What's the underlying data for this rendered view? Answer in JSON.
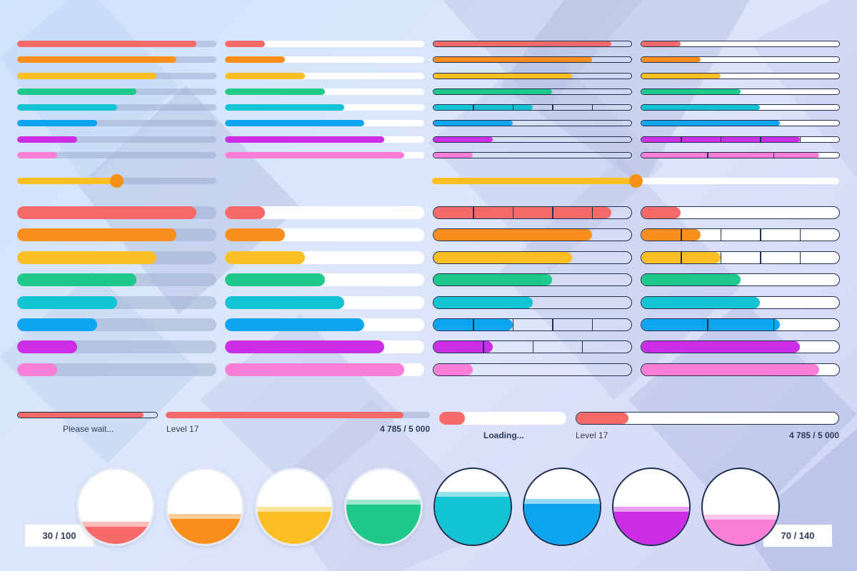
{
  "palette": {
    "red": "#f86a6a",
    "orange": "#fb8f1e",
    "yellow": "#fbbf24",
    "green": "#1ec98a",
    "teal": "#12c3d3",
    "blue": "#0ea5f0",
    "purple": "#cc2ee8",
    "pink": "#fb7fd6",
    "outline": "#1f2f52",
    "track": "#9eaed0",
    "handle": "#f59117"
  },
  "bar_sets": [
    {
      "id": "thin",
      "columns": [
        {
          "style": "flat",
          "bars": [
            {
              "color": "red",
              "progress": 0.9
            },
            {
              "color": "orange",
              "progress": 0.8
            },
            {
              "color": "yellow",
              "progress": 0.7
            },
            {
              "color": "green",
              "progress": 0.6
            },
            {
              "color": "teal",
              "progress": 0.5
            },
            {
              "color": "blue",
              "progress": 0.4
            },
            {
              "color": "purple",
              "progress": 0.3
            },
            {
              "color": "pink",
              "progress": 0.2
            }
          ]
        },
        {
          "style": "white",
          "bars": [
            {
              "color": "red",
              "progress": 0.2
            },
            {
              "color": "orange",
              "progress": 0.3
            },
            {
              "color": "yellow",
              "progress": 0.4
            },
            {
              "color": "green",
              "progress": 0.5
            },
            {
              "color": "teal",
              "progress": 0.6
            },
            {
              "color": "blue",
              "progress": 0.7
            },
            {
              "color": "purple",
              "progress": 0.8
            },
            {
              "color": "pink",
              "progress": 0.9
            }
          ]
        },
        {
          "style": "outline",
          "bars": [
            {
              "color": "red",
              "progress": 0.9,
              "segments": 0
            },
            {
              "color": "orange",
              "progress": 0.8,
              "segments": 0
            },
            {
              "color": "yellow",
              "progress": 0.7,
              "segments": 0
            },
            {
              "color": "green",
              "progress": 0.6,
              "segments": 0
            },
            {
              "color": "teal",
              "progress": 0.5,
              "segments": 5
            },
            {
              "color": "blue",
              "progress": 0.4,
              "segments": 0
            },
            {
              "color": "purple",
              "progress": 0.3,
              "segments": 0
            },
            {
              "color": "pink",
              "progress": 0.2,
              "segments": 0
            }
          ]
        },
        {
          "style": "outline-white",
          "bars": [
            {
              "color": "red",
              "progress": 0.2,
              "segments": 0
            },
            {
              "color": "orange",
              "progress": 0.3,
              "segments": 0
            },
            {
              "color": "yellow",
              "progress": 0.4,
              "segments": 0
            },
            {
              "color": "green",
              "progress": 0.5,
              "segments": 0
            },
            {
              "color": "teal",
              "progress": 0.6,
              "segments": 0
            },
            {
              "color": "blue",
              "progress": 0.7,
              "segments": 0
            },
            {
              "color": "purple",
              "progress": 0.8,
              "segments": 5
            },
            {
              "color": "pink",
              "progress": 0.9,
              "segments": 3
            }
          ]
        }
      ]
    },
    {
      "id": "thick",
      "columns": [
        {
          "style": "flat",
          "bars": [
            {
              "color": "red",
              "progress": 0.9
            },
            {
              "color": "orange",
              "progress": 0.8
            },
            {
              "color": "yellow",
              "progress": 0.7
            },
            {
              "color": "green",
              "progress": 0.6
            },
            {
              "color": "teal",
              "progress": 0.5
            },
            {
              "color": "blue",
              "progress": 0.4
            },
            {
              "color": "purple",
              "progress": 0.3
            },
            {
              "color": "pink",
              "progress": 0.2
            }
          ]
        },
        {
          "style": "white",
          "bars": [
            {
              "color": "red",
              "progress": 0.2
            },
            {
              "color": "orange",
              "progress": 0.3
            },
            {
              "color": "yellow",
              "progress": 0.4
            },
            {
              "color": "green",
              "progress": 0.5
            },
            {
              "color": "teal",
              "progress": 0.6
            },
            {
              "color": "blue",
              "progress": 0.7
            },
            {
              "color": "purple",
              "progress": 0.8
            },
            {
              "color": "pink",
              "progress": 0.9
            }
          ]
        },
        {
          "style": "outline",
          "bars": [
            {
              "color": "red",
              "progress": 0.9,
              "segments": 5
            },
            {
              "color": "orange",
              "progress": 0.8,
              "segments": 0
            },
            {
              "color": "yellow",
              "progress": 0.7,
              "segments": 0
            },
            {
              "color": "green",
              "progress": 0.6,
              "segments": 0
            },
            {
              "color": "teal",
              "progress": 0.5,
              "segments": 0
            },
            {
              "color": "blue",
              "progress": 0.4,
              "segments": 5
            },
            {
              "color": "purple",
              "progress": 0.3,
              "segments": 4
            },
            {
              "color": "pink",
              "progress": 0.2,
              "segments": 0
            }
          ]
        },
        {
          "style": "outline-white",
          "bars": [
            {
              "color": "red",
              "progress": 0.2,
              "segments": 0
            },
            {
              "color": "orange",
              "progress": 0.3,
              "segments": 5
            },
            {
              "color": "yellow",
              "progress": 0.4,
              "segments": 5
            },
            {
              "color": "green",
              "progress": 0.5,
              "segments": 0
            },
            {
              "color": "teal",
              "progress": 0.6,
              "segments": 0
            },
            {
              "color": "blue",
              "progress": 0.7,
              "segments": 3
            },
            {
              "color": "purple",
              "progress": 0.8,
              "segments": 0
            },
            {
              "color": "pink",
              "progress": 0.9,
              "segments": 0
            }
          ]
        }
      ]
    }
  ],
  "sliders": [
    {
      "id": "slider-left",
      "style": "flat",
      "value": 0.5
    },
    {
      "id": "slider-right",
      "style": "white",
      "value": 0.5
    }
  ],
  "loaders": {
    "please_wait": {
      "label": "Please wait...",
      "progress": 0.9
    },
    "level_left": {
      "level_text": "Level 17",
      "score_text": "4 785 / 5 000",
      "progress": 0.9
    },
    "loading": {
      "label": "Loading...",
      "progress": 0.2
    },
    "level_right": {
      "level_text": "Level 17",
      "score_text": "4 785 / 5 000",
      "progress": 0.2
    }
  },
  "circles": [
    {
      "color": "red",
      "fill": 0.3,
      "border": "soft"
    },
    {
      "color": "orange",
      "fill": 0.4,
      "border": "soft"
    },
    {
      "color": "yellow",
      "fill": 0.5,
      "border": "soft"
    },
    {
      "color": "green",
      "fill": 0.6,
      "border": "soft"
    },
    {
      "color": "teal",
      "fill": 0.7,
      "border": "dark"
    },
    {
      "color": "blue",
      "fill": 0.6,
      "border": "dark"
    },
    {
      "color": "purple",
      "fill": 0.5,
      "border": "dark"
    },
    {
      "color": "pink",
      "fill": 0.4,
      "border": "dark"
    }
  ],
  "counters": {
    "left": "30 / 100",
    "right": "70 / 140"
  }
}
